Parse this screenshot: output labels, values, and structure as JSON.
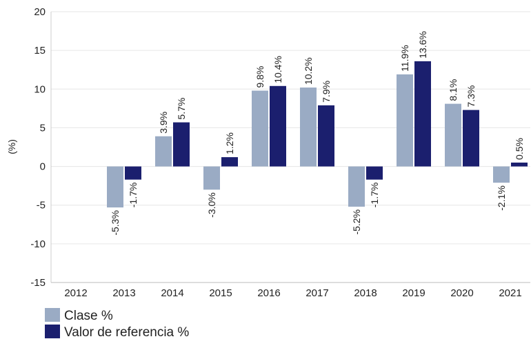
{
  "chart_data": {
    "type": "bar",
    "y_label": "(%)",
    "categories": [
      "2012",
      "2013",
      "2014",
      "2015",
      "2016",
      "2017",
      "2018",
      "2019",
      "2020",
      "2021"
    ],
    "series": [
      {
        "name": "Clase %",
        "color": "#9aabc4",
        "values": [
          null,
          -5.3,
          3.9,
          -3.0,
          9.8,
          10.2,
          -5.2,
          11.9,
          8.1,
          -2.1
        ],
        "value_labels": [
          null,
          "-5.3%",
          "3.9%",
          "-3.0%",
          "9.8%",
          "10.2%",
          "-5.2%",
          "11.9%",
          "8.1%",
          "-2.1%"
        ]
      },
      {
        "name": "Valor de referencia %",
        "color": "#1b1f6e",
        "values": [
          null,
          -1.7,
          5.7,
          1.2,
          10.4,
          7.9,
          -1.7,
          13.6,
          7.3,
          0.5
        ],
        "value_labels": [
          null,
          "-1.7%",
          "5.7%",
          "1.2%",
          "10.4%",
          "7.9%",
          "-1.7%",
          "13.6%",
          "7.3%",
          "0.5%"
        ]
      }
    ],
    "ylim": [
      -15,
      20
    ],
    "yticks": [
      -15,
      -10,
      -5,
      0,
      5,
      10,
      15,
      20
    ],
    "grid": true
  }
}
